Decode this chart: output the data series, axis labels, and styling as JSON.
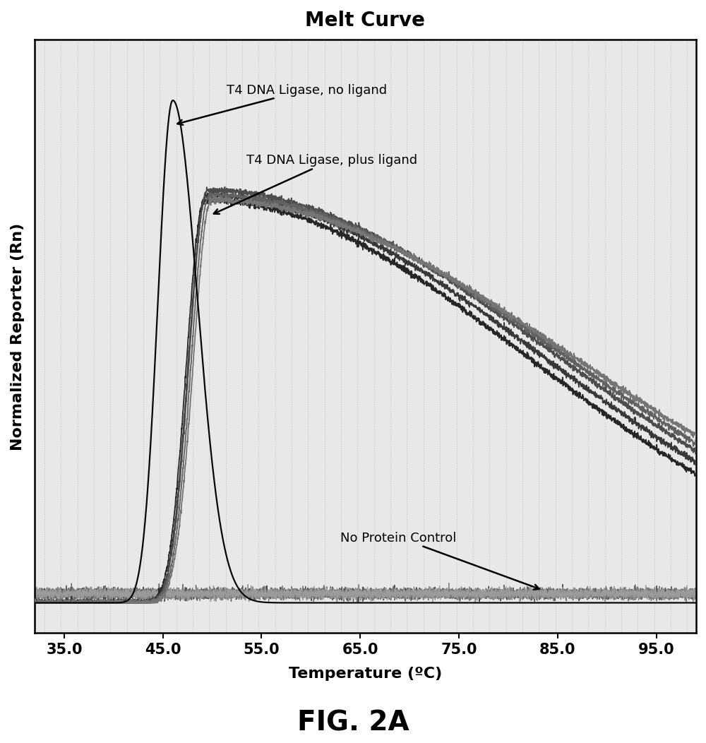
{
  "title": "Melt Curve",
  "xlabel": "Temperature (ºC)",
  "ylabel": "Normalized Reporter (Rn)",
  "fig_caption": "FIG. 2A",
  "x_min": 32.0,
  "x_max": 99.0,
  "y_min": -0.06,
  "y_max": 1.12,
  "x_ticks": [
    35.0,
    45.0,
    55.0,
    65.0,
    75.0,
    85.0,
    95.0
  ],
  "background_color": "#ffffff",
  "plot_bg_color": "#e8e8e8",
  "annotation_no_ligand": "T4 DNA Ligase, no ligand",
  "annotation_plus_ligand": "T4 DNA Ligase, plus ligand",
  "annotation_no_protein": "No Protein Control",
  "title_fontsize": 20,
  "label_fontsize": 16,
  "caption_fontsize": 28,
  "tick_fontsize": 15,
  "annotation_fontsize": 13
}
